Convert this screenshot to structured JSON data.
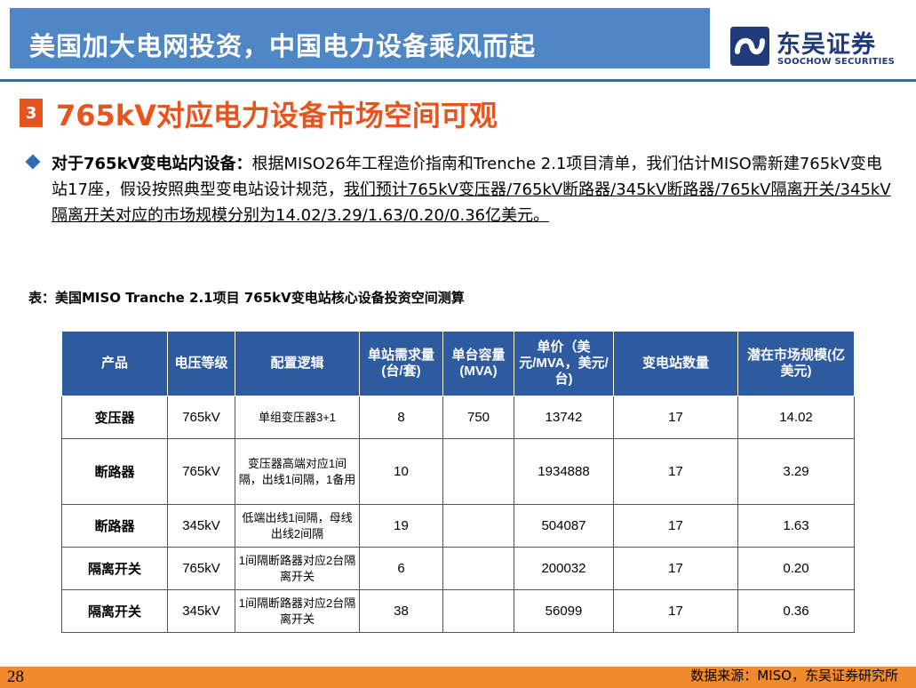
{
  "header": {
    "title": "美国加大电网投资，中国电力设备乘风而起"
  },
  "logo": {
    "cn": "东吴证券",
    "en": "SOOCHOW SECURITIES",
    "accent": "#1f3a7d"
  },
  "section": {
    "number": "3",
    "title": "765kV对应电力设备市场空间可观",
    "accent": "#e8541e"
  },
  "paragraph": {
    "bold": "对于765kV变电站内设备：",
    "plain": "根据MISO26年工程造价指南和Trenche 2.1项目清单，我们估计MISO需新建765kV变电站17座，假设按照典型变电站设计规范，",
    "underlined": "我们预计765kV变压器/765kV断路器/345kV断路器/765kV隔离开关/345kV隔离开关对应的市场规模分别为14.02/3.29/1.63/0.20/0.36亿美元。"
  },
  "table": {
    "caption": "表：美国MISO Tranche 2.1项目 765kV变电站核心设备投资空间测算",
    "header_color": "#2e5aa0",
    "columns": [
      "产品",
      "电压等级",
      "配置逻辑",
      "单站需求量(台/套)",
      "单台容量(MVA)",
      "单价（美元/MVA，美元/台)",
      "变电站数量",
      "潜在市场规模(亿美元)"
    ],
    "rows": [
      {
        "product": "变压器",
        "voltage": "765kV",
        "logic": "单组变压器3+1",
        "qty": "8",
        "capacity": "750",
        "price": "13742",
        "stations": "17",
        "market": "14.02"
      },
      {
        "product": "断路器",
        "voltage": "765kV",
        "logic": "变压器高端对应1间隔，出线1间隔，1备用",
        "qty": "10",
        "capacity": "",
        "price": "1934888",
        "stations": "17",
        "market": "3.29"
      },
      {
        "product": "断路器",
        "voltage": "345kV",
        "logic": "低端出线1间隔，母线出线2间隔",
        "qty": "19",
        "capacity": "",
        "price": "504087",
        "stations": "17",
        "market": "1.63"
      },
      {
        "product": "隔离开关",
        "voltage": "765kV",
        "logic": "1间隔断路器对应2台隔离开关",
        "qty": "6",
        "capacity": "",
        "price": "200032",
        "stations": "17",
        "market": "0.20"
      },
      {
        "product": "隔离开关",
        "voltage": "345kV",
        "logic": "1间隔断路器对应2台隔离开关",
        "qty": "38",
        "capacity": "",
        "price": "56099",
        "stations": "17",
        "market": "0.36"
      }
    ]
  },
  "footer": {
    "page": "28",
    "source": "数据来源：MISO，东吴证券研究所",
    "bar_color": "#f08a2c"
  }
}
